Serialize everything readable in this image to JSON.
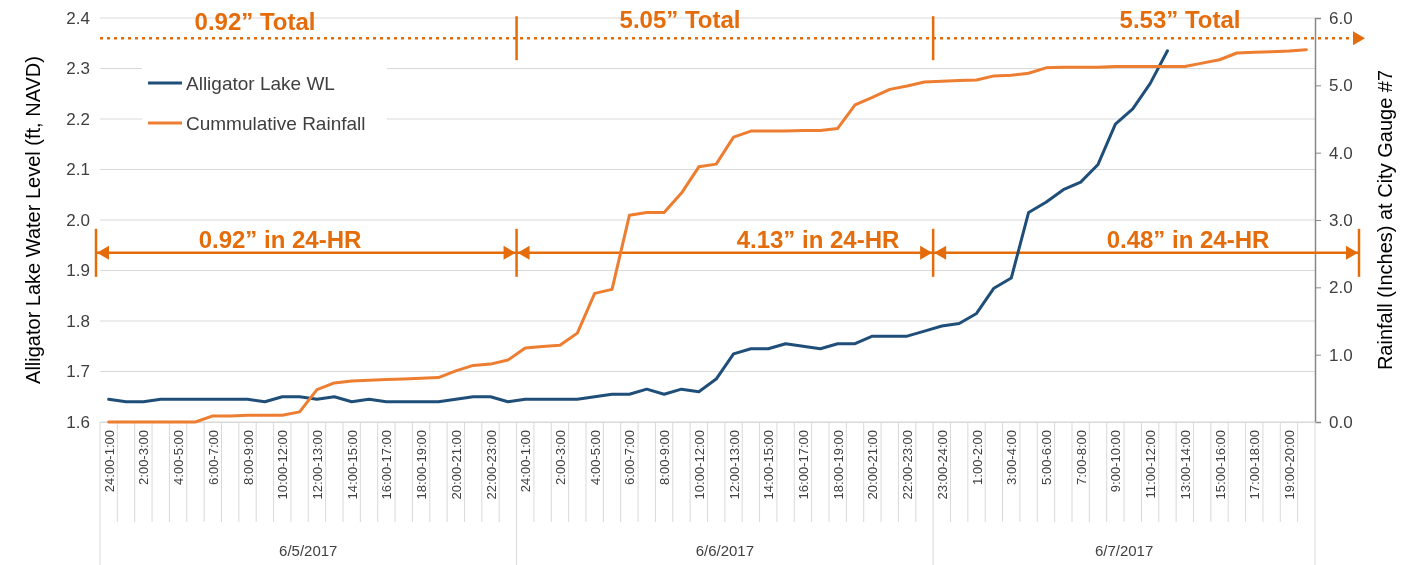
{
  "chart_data": {
    "type": "line",
    "ylabel": "Alligator Lake Water Level (ft, NAVD)",
    "y2label": "Rainfall (Inches) at City Gauge #7",
    "categories": [
      "24:00-1:00",
      null,
      "2:00-3:00",
      null,
      "4:00-5:00",
      null,
      "6:00-7:00",
      null,
      "8:00-9:00",
      null,
      "10:00-12:00",
      null,
      "12:00-13:00",
      null,
      "14:00-15:00",
      null,
      "16:00-17:00",
      null,
      "18:00-19:00",
      null,
      "20:00-21:00",
      null,
      "22:00-23:00",
      null,
      "24:00-1:00",
      null,
      "2:00-3:00",
      null,
      "4:00-5:00",
      null,
      "6:00-7:00",
      null,
      "8:00-9:00",
      null,
      "10:00-12:00",
      null,
      "12:00-13:00",
      null,
      "14:00-15:00",
      null,
      "16:00-17:00",
      null,
      "18:00-19:00",
      null,
      "20:00-21:00",
      null,
      "22:00-23:00",
      null,
      "23:00-24:00",
      null,
      "1:00-2:00",
      null,
      "3:00-4:00",
      null,
      "5:00-6:00",
      null,
      "7:00-8:00",
      null,
      "9:00-10:00",
      null,
      "11:00-12:00",
      null,
      "13:00-14:00",
      null,
      "15:00-16:00",
      null,
      "17:00-18:00",
      null,
      "19:00-20:00",
      null
    ],
    "series": [
      {
        "name": "Alligator Lake WL",
        "color": "#1f4e79",
        "values": [
          1.645,
          1.64,
          1.64,
          1.645,
          1.645,
          1.645,
          1.645,
          1.645,
          1.645,
          1.64,
          1.65,
          1.65,
          1.645,
          1.65,
          1.64,
          1.645,
          1.64,
          1.64,
          1.64,
          1.64,
          1.645,
          1.65,
          1.65,
          1.64,
          1.645,
          1.645,
          1.645,
          1.645,
          1.65,
          1.655,
          1.655,
          1.665,
          1.655,
          1.665,
          1.66,
          1.685,
          1.735,
          1.745,
          1.745,
          1.755,
          1.75,
          1.745,
          1.755,
          1.755,
          1.77,
          1.77,
          1.77,
          1.78,
          1.79,
          1.795,
          1.815,
          1.865,
          1.885,
          2.015,
          2.035,
          2.06,
          2.075,
          2.11,
          2.19,
          2.22,
          2.27,
          2.335,
          null,
          null,
          null,
          null,
          null,
          null,
          null,
          null
        ]
      },
      {
        "name": "Cummulative Rainfall",
        "color": "#ed7d31",
        "axis": "y2",
        "values": [
          0,
          0,
          0,
          0,
          0,
          0,
          0.09,
          0.09,
          0.1,
          0.1,
          0.1,
          0.15,
          0.48,
          0.58,
          0.61,
          0.62,
          0.63,
          0.64,
          0.65,
          0.66,
          0.76,
          0.84,
          0.86,
          0.92,
          1.1,
          1.12,
          1.14,
          1.32,
          1.91,
          1.97,
          3.07,
          3.11,
          3.11,
          3.4,
          3.79,
          3.83,
          4.23,
          4.32,
          4.32,
          4.32,
          4.33,
          4.33,
          4.36,
          4.71,
          4.82,
          4.94,
          4.99,
          5.05,
          5.06,
          5.07,
          5.08,
          5.14,
          5.15,
          5.18,
          5.26,
          5.27,
          5.27,
          5.27,
          5.28,
          5.28,
          5.28,
          5.28,
          5.28,
          5.33,
          5.38,
          5.48,
          5.49,
          5.5,
          5.51,
          5.53
        ]
      }
    ],
    "ylim": [
      1.6,
      2.4
    ],
    "yticks": [
      {
        "value": 1.6,
        "label": "1.6"
      },
      {
        "value": 1.7,
        "label": "1.7"
      },
      {
        "value": 1.8,
        "label": "1.8"
      },
      {
        "value": 1.9,
        "label": "1.9"
      },
      {
        "value": 2.0,
        "label": "2.0"
      },
      {
        "value": 2.1,
        "label": "2.1"
      },
      {
        "value": 2.2,
        "label": "2.2"
      },
      {
        "value": 2.3,
        "label": "2.3"
      },
      {
        "value": 2.4,
        "label": "2.4"
      }
    ],
    "y2lim": [
      0,
      6
    ],
    "y2ticks": [
      {
        "value": 0,
        "label": "0.0"
      },
      {
        "value": 1,
        "label": "1.0"
      },
      {
        "value": 2,
        "label": "2.0"
      },
      {
        "value": 3,
        "label": "3.0"
      },
      {
        "value": 4,
        "label": "4.0"
      },
      {
        "value": 5,
        "label": "5.0"
      },
      {
        "value": 6,
        "label": "6.0"
      }
    ],
    "grid": "y",
    "legend": "top left",
    "marker": "none",
    "line_style": "solid",
    "ref_lines": [
      {
        "axis": "y",
        "value": 2.36,
        "line_style": "dotted",
        "color": "#e46c0a"
      },
      {
        "axis": "y",
        "value": 1.935,
        "line_style": "solid",
        "color": "#e46c0a"
      }
    ],
    "annotations": [
      "0.92” Total",
      "5.05” Total",
      "5.53” Total",
      "0.92” in 24-HR",
      "4.13” in 24-HR",
      "0.48” in 24-HR",
      "6/5/2017",
      "6/6/2017",
      "6/7/2017"
    ]
  }
}
